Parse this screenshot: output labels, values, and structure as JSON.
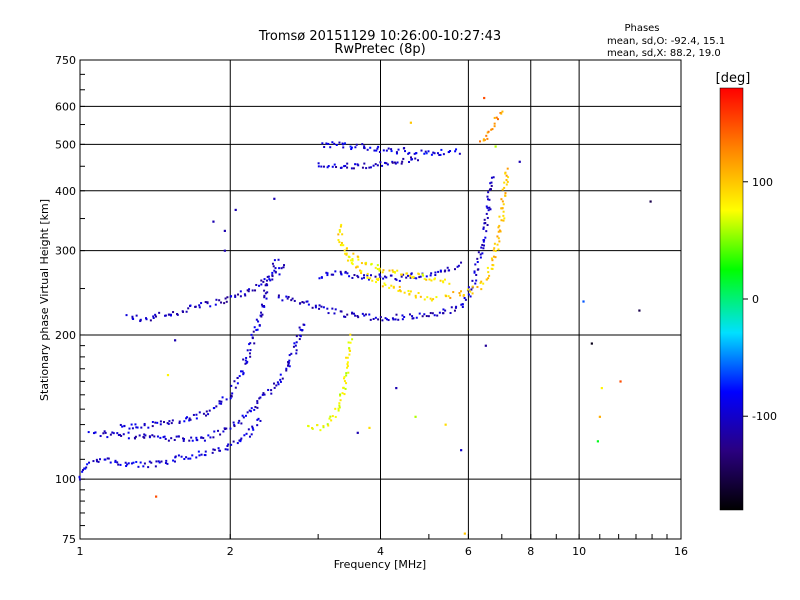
{
  "header": {
    "title": "Tromsø 20151129 10:26:00-10:27:43",
    "subtitle": "RwPretec (8p)",
    "phase_title": "Phases",
    "phase_o": "mean, sd,O: -92.4, 15.1",
    "phase_x": "mean, sd,X: 88.2, 19.0"
  },
  "chart_data": {
    "type": "scatter",
    "title": "Tromsø 20151129 10:26:00-10:27:43",
    "subtitle": "RwPretec (8p)",
    "xlabel": "Frequency [MHz]",
    "ylabel": "Stationary phase Virtual Height [km]",
    "x_scale": "log",
    "y_scale": "log",
    "xlim": [
      1,
      16
    ],
    "ylim": [
      75,
      750
    ],
    "x_ticks": [
      1,
      2,
      4,
      6,
      8,
      10,
      16
    ],
    "x_tick_labels": [
      "1",
      "2",
      "4",
      "6",
      "8",
      "10",
      "16"
    ],
    "y_ticks": [
      75,
      100,
      200,
      300,
      400,
      500,
      600,
      750
    ],
    "y_tick_labels": [
      "75",
      "100",
      "200",
      "300",
      "400",
      "500",
      "600",
      "750"
    ],
    "grid": true,
    "colorbar": {
      "label": "[deg]",
      "range": [
        -180,
        180
      ],
      "ticks": [
        100,
        0,
        -100
      ],
      "tick_labels": [
        "100",
        "0",
        "-100"
      ]
    },
    "traces": [
      {
        "name": "",
        "phase": -95,
        "points": [
          [
            1.0,
            100
          ],
          [
            1.02,
            105
          ],
          [
            1.05,
            108
          ],
          [
            1.1,
            110
          ],
          [
            1.2,
            108
          ],
          [
            1.35,
            107
          ],
          [
            1.5,
            108
          ],
          [
            1.6,
            111
          ],
          [
            1.75,
            113
          ],
          [
            1.9,
            115
          ],
          [
            2.0,
            117
          ],
          [
            2.1,
            120
          ],
          [
            2.2,
            126
          ],
          [
            2.3,
            135
          ]
        ]
      },
      {
        "name": "",
        "phase": -100,
        "points": [
          [
            1.05,
            125
          ],
          [
            1.15,
            124
          ],
          [
            1.3,
            123
          ],
          [
            1.45,
            122
          ],
          [
            1.6,
            121
          ],
          [
            1.8,
            122
          ],
          [
            1.95,
            126
          ],
          [
            2.1,
            133
          ],
          [
            2.3,
            146
          ],
          [
            2.5,
            160
          ],
          [
            2.7,
            185
          ],
          [
            2.8,
            215
          ]
        ]
      },
      {
        "name": "",
        "phase": -100,
        "points": [
          [
            1.2,
            128
          ],
          [
            1.4,
            130
          ],
          [
            1.6,
            132
          ],
          [
            1.8,
            138
          ],
          [
            2.0,
            150
          ],
          [
            2.1,
            165
          ],
          [
            2.2,
            190
          ],
          [
            2.3,
            220
          ],
          [
            2.4,
            262
          ],
          [
            2.5,
            290
          ]
        ]
      },
      {
        "name": "",
        "phase": -105,
        "points": [
          [
            1.25,
            218
          ],
          [
            1.35,
            216
          ],
          [
            1.45,
            220
          ],
          [
            1.55,
            222
          ],
          [
            1.7,
            228
          ],
          [
            1.85,
            233
          ],
          [
            2.0,
            238
          ],
          [
            2.15,
            245
          ],
          [
            2.3,
            255
          ],
          [
            2.45,
            268
          ],
          [
            2.6,
            280
          ]
        ]
      },
      {
        "name": "",
        "phase": -105,
        "points": [
          [
            2.5,
            240
          ],
          [
            2.7,
            236
          ],
          [
            2.9,
            232
          ],
          [
            3.1,
            226
          ],
          [
            3.4,
            220
          ],
          [
            3.8,
            218
          ],
          [
            4.2,
            217
          ],
          [
            4.6,
            218
          ],
          [
            5.0,
            220
          ],
          [
            5.3,
            222
          ],
          [
            5.6,
            226
          ],
          [
            5.9,
            234
          ],
          [
            6.1,
            252
          ],
          [
            6.3,
            285
          ],
          [
            6.5,
            330
          ],
          [
            6.6,
            380
          ],
          [
            6.7,
            430
          ]
        ]
      },
      {
        "name": "",
        "phase": -100,
        "points": [
          [
            3.0,
            265
          ],
          [
            3.3,
            268
          ],
          [
            3.6,
            266
          ],
          [
            3.9,
            264
          ],
          [
            4.3,
            262
          ],
          [
            4.7,
            266
          ],
          [
            5.1,
            268
          ],
          [
            5.5,
            275
          ],
          [
            5.8,
            285
          ]
        ]
      },
      {
        "name": "",
        "phase": 100,
        "points": [
          [
            5.4,
            240
          ],
          [
            5.7,
            243
          ],
          [
            6.0,
            246
          ],
          [
            6.3,
            252
          ],
          [
            6.5,
            262
          ],
          [
            6.7,
            280
          ],
          [
            6.85,
            310
          ],
          [
            7.0,
            350
          ],
          [
            7.1,
            400
          ],
          [
            7.2,
            450
          ]
        ]
      },
      {
        "name": "",
        "phase": 90,
        "points": [
          [
            3.3,
            340
          ],
          [
            3.35,
            310
          ],
          [
            3.45,
            290
          ],
          [
            3.6,
            275
          ],
          [
            3.8,
            265
          ],
          [
            4.0,
            258
          ],
          [
            4.3,
            250
          ],
          [
            4.6,
            244
          ],
          [
            4.9,
            240
          ],
          [
            5.2,
            238
          ]
        ]
      },
      {
        "name": "",
        "phase": 85,
        "points": [
          [
            3.4,
            300
          ],
          [
            3.6,
            288
          ],
          [
            3.85,
            278
          ],
          [
            4.1,
            272
          ],
          [
            4.4,
            268
          ],
          [
            4.8,
            265
          ],
          [
            5.2,
            262
          ],
          [
            5.5,
            258
          ]
        ]
      },
      {
        "name": "",
        "phase": 75,
        "points": [
          [
            2.85,
            130
          ],
          [
            3.0,
            128
          ],
          [
            3.15,
            130
          ],
          [
            3.3,
            140
          ],
          [
            3.4,
            160
          ],
          [
            3.45,
            180
          ],
          [
            3.5,
            200
          ]
        ]
      },
      {
        "name": "",
        "phase": -105,
        "points": [
          [
            3.0,
            455
          ],
          [
            3.2,
            452
          ],
          [
            3.5,
            450
          ],
          [
            3.8,
            450
          ],
          [
            4.1,
            455
          ],
          [
            4.4,
            460
          ],
          [
            4.8,
            468
          ]
        ]
      },
      {
        "name": "",
        "phase": -90,
        "points": [
          [
            3.05,
            500
          ],
          [
            3.3,
            498
          ],
          [
            3.6,
            494
          ],
          [
            3.9,
            490
          ],
          [
            4.2,
            486
          ],
          [
            4.6,
            484
          ],
          [
            5.0,
            482
          ],
          [
            5.4,
            480
          ],
          [
            5.8,
            482
          ]
        ]
      },
      {
        "name": "",
        "phase": 120,
        "points": [
          [
            6.4,
            500
          ],
          [
            6.6,
            530
          ],
          [
            6.8,
            560
          ],
          [
            7.0,
            590
          ]
        ]
      }
    ],
    "outliers": [
      {
        "x": 1.42,
        "y": 92,
        "phase": 150
      },
      {
        "x": 1.85,
        "y": 345,
        "phase": -110
      },
      {
        "x": 1.95,
        "y": 330,
        "phase": -110
      },
      {
        "x": 2.05,
        "y": 365,
        "phase": -110
      },
      {
        "x": 2.45,
        "y": 385,
        "phase": -110
      },
      {
        "x": 1.5,
        "y": 165,
        "phase": 80
      },
      {
        "x": 1.55,
        "y": 195,
        "phase": -110
      },
      {
        "x": 1.95,
        "y": 300,
        "phase": -110
      },
      {
        "x": 4.6,
        "y": 555,
        "phase": 100
      },
      {
        "x": 6.45,
        "y": 625,
        "phase": 150
      },
      {
        "x": 6.8,
        "y": 495,
        "phase": 60
      },
      {
        "x": 7.6,
        "y": 460,
        "phase": -110
      },
      {
        "x": 4.3,
        "y": 155,
        "phase": -110
      },
      {
        "x": 5.4,
        "y": 130,
        "phase": 90
      },
      {
        "x": 5.8,
        "y": 115,
        "phase": -100
      },
      {
        "x": 4.7,
        "y": 135,
        "phase": 60
      },
      {
        "x": 5.9,
        "y": 77,
        "phase": 100
      },
      {
        "x": 6.5,
        "y": 190,
        "phase": -120
      },
      {
        "x": 10.2,
        "y": 235,
        "phase": -60
      },
      {
        "x": 10.6,
        "y": 192,
        "phase": -170
      },
      {
        "x": 10.9,
        "y": 120,
        "phase": 20
      },
      {
        "x": 11.1,
        "y": 155,
        "phase": 80
      },
      {
        "x": 11.0,
        "y": 135,
        "phase": 110
      },
      {
        "x": 12.1,
        "y": 160,
        "phase": 150
      },
      {
        "x": 13.2,
        "y": 225,
        "phase": -150
      },
      {
        "x": 13.9,
        "y": 380,
        "phase": -150
      },
      {
        "x": 3.6,
        "y": 125,
        "phase": -110
      },
      {
        "x": 3.8,
        "y": 128,
        "phase": 90
      }
    ]
  }
}
